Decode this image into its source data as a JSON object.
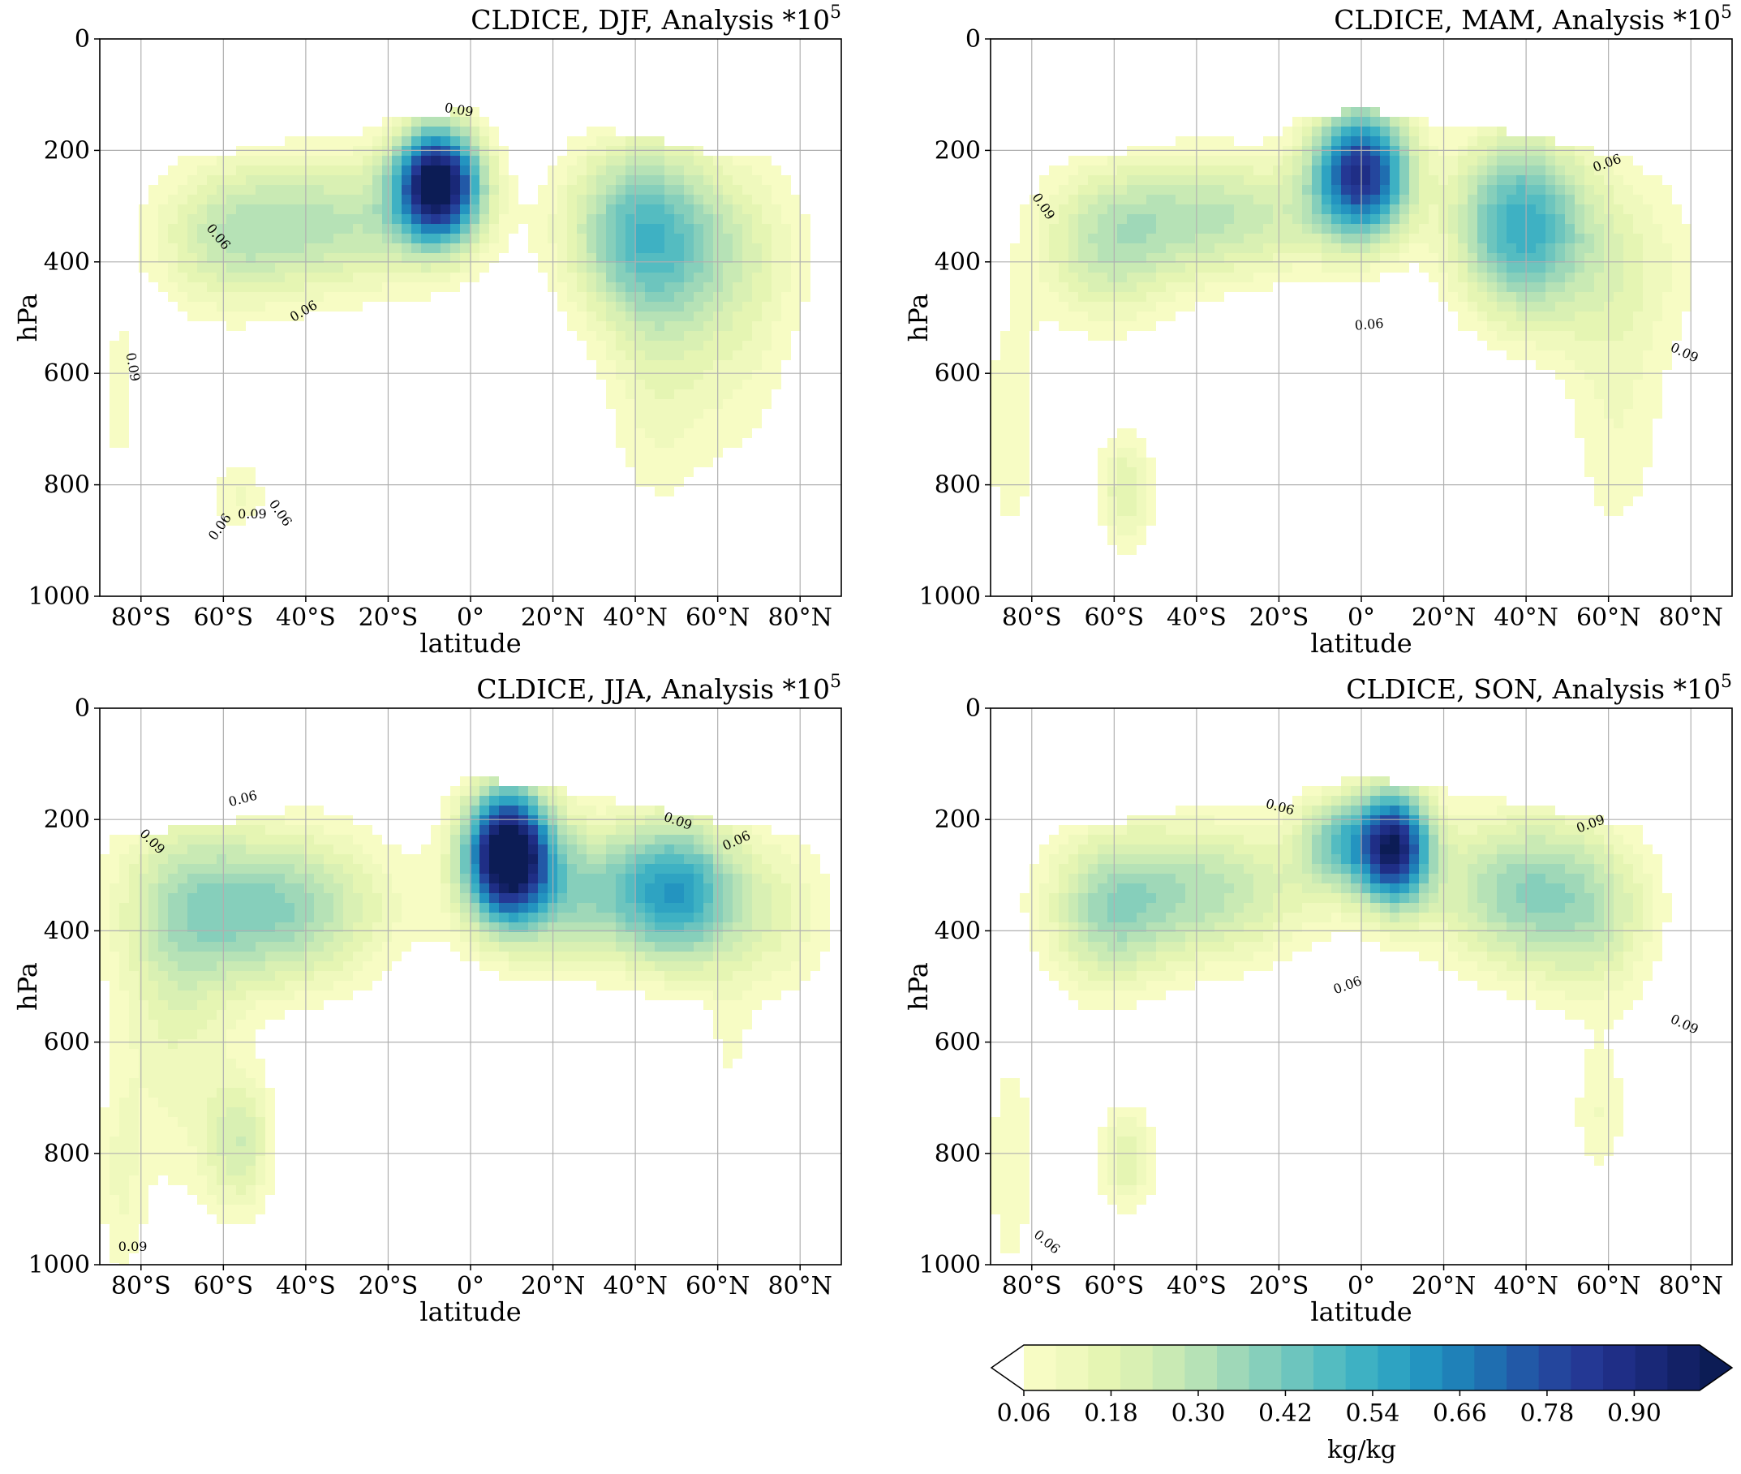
{
  "colors": [
    "#ffffff",
    "#f7fcc4",
    "#eff9bd",
    "#e5f5b3",
    "#d9f0b3",
    "#c9eab4",
    "#b6e2b6",
    "#9fd8b8",
    "#86cfbb",
    "#6dc5be",
    "#54bcc1",
    "#3eb1c3",
    "#2ea3c2",
    "#2394c0",
    "#1f81b8",
    "#1f6eb0",
    "#2259a7",
    "#24469d",
    "#243894",
    "#1f2e86",
    "#192877",
    "#132166",
    "#0c1c55"
  ],
  "chart_data": [
    {
      "type": "contour",
      "title": "CLDICE, DJF, Analysis *10",
      "title_sup": "5",
      "xlabel": "latitude",
      "ylabel": "hPa",
      "xlim": [
        -90,
        90
      ],
      "ylim": [
        1000,
        0
      ],
      "xticks": [
        "80°S",
        "60°S",
        "40°S",
        "20°S",
        "0°",
        "20°N",
        "40°N",
        "60°N",
        "80°N"
      ],
      "yticks": [
        "0",
        "200",
        "400",
        "600",
        "800",
        "1000"
      ],
      "contour_labels": [
        "0.09",
        "0.06",
        "0.06",
        "0.09",
        "0.06",
        "0.06",
        "0.09"
      ],
      "grid": true
    },
    {
      "type": "contour",
      "title": "CLDICE, MAM, Analysis *10",
      "title_sup": "5",
      "xlabel": "latitude",
      "ylabel": "hPa",
      "xlim": [
        -90,
        90
      ],
      "ylim": [
        1000,
        0
      ],
      "xticks": [
        "80°S",
        "60°S",
        "40°S",
        "20°S",
        "0°",
        "20°N",
        "40°N",
        "60°N",
        "80°N"
      ],
      "yticks": [
        "0",
        "200",
        "400",
        "600",
        "800",
        "1000"
      ],
      "contour_labels": [
        "0.06",
        "0.09",
        "0.06",
        "0.09"
      ],
      "grid": true
    },
    {
      "type": "contour",
      "title": "CLDICE, JJA, Analysis *10",
      "title_sup": "5",
      "xlabel": "latitude",
      "ylabel": "hPa",
      "xlim": [
        -90,
        90
      ],
      "ylim": [
        1000,
        0
      ],
      "xticks": [
        "80°S",
        "60°S",
        "40°S",
        "20°S",
        "0°",
        "20°N",
        "40°N",
        "60°N",
        "80°N"
      ],
      "yticks": [
        "0",
        "200",
        "400",
        "600",
        "800",
        "1000"
      ],
      "contour_labels": [
        "0.06",
        "0.09",
        "0.09",
        "0.06",
        "0.09"
      ],
      "grid": true
    },
    {
      "type": "contour",
      "title": "CLDICE, SON, Analysis *10",
      "title_sup": "5",
      "xlabel": "latitude",
      "ylabel": "hPa",
      "xlim": [
        -90,
        90
      ],
      "ylim": [
        1000,
        0
      ],
      "xticks": [
        "80°S",
        "60°S",
        "40°S",
        "20°S",
        "0°",
        "20°N",
        "40°N",
        "60°N",
        "80°N"
      ],
      "yticks": [
        "0",
        "200",
        "400",
        "600",
        "800",
        "1000"
      ],
      "contour_labels": [
        "0.06",
        "0.09",
        "0.06",
        "0.09",
        "0.06"
      ],
      "grid": true
    }
  ],
  "colorbar": {
    "unit": "kg/kg",
    "ticks": [
      "0.06",
      "0.18",
      "0.30",
      "0.42",
      "0.54",
      "0.66",
      "0.78",
      "0.90"
    ],
    "range": [
      0.06,
      0.99
    ],
    "extend": "both"
  }
}
